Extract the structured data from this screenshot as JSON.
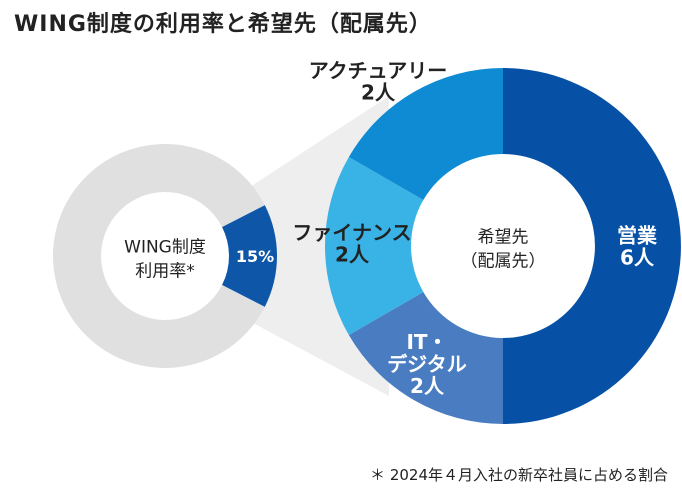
{
  "title": "WING制度の利用率と希望先（配属先）",
  "footnote": "＊ 2024年４月入社の新卒社員に占める割合",
  "chart_data": [
    {
      "type": "pie",
      "center_label_lines": [
        "WING制度",
        "利用率*"
      ],
      "slices": [
        {
          "label": "15%",
          "value": 15,
          "color": "#0e56a8",
          "highlight": true
        },
        {
          "label": "",
          "value": 85,
          "color": "#e0e0e0"
        }
      ]
    },
    {
      "type": "pie",
      "center_label_lines": [
        "希望先",
        "（配属先）"
      ],
      "slices": [
        {
          "label_lines": [
            "営業",
            "6人"
          ],
          "value": 6,
          "color": "#0650a6"
        },
        {
          "label_lines": [
            "IT・",
            "デジタル",
            "2人"
          ],
          "value": 2,
          "color": "#4a7cc2"
        },
        {
          "label_lines": [
            "ファイナンス",
            "2人"
          ],
          "value": 2,
          "color": "#39b3e6"
        },
        {
          "label_lines": [
            "アクチュアリー",
            "2人"
          ],
          "value": 2,
          "color": "#0e8bd2"
        }
      ]
    }
  ]
}
